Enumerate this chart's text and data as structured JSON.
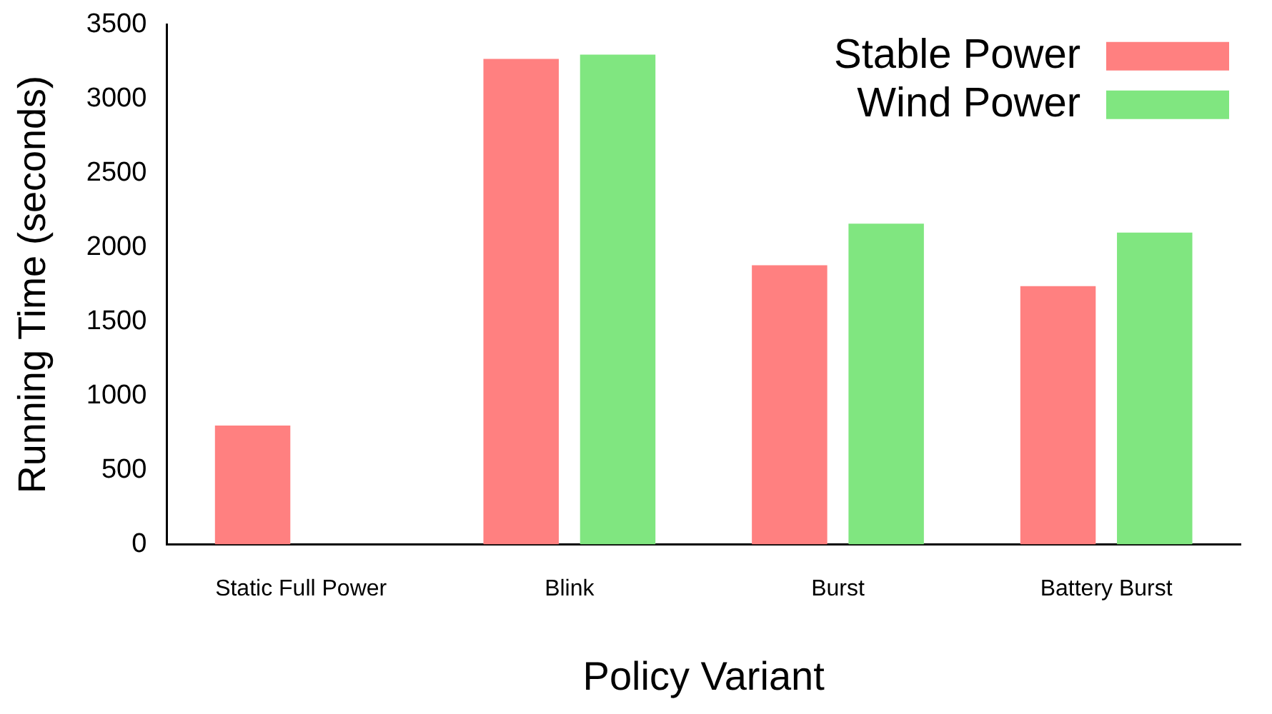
{
  "chart_data": {
    "type": "bar",
    "xlabel": "Policy Variant",
    "ylabel": "Running Time (seconds)",
    "categories": [
      "Static Full Power",
      "Blink",
      "Burst",
      "Battery Burst"
    ],
    "series": [
      {
        "name": "Stable Power",
        "color": "#ff8080",
        "values": [
          800,
          3270,
          1880,
          1740
        ]
      },
      {
        "name": "Wind Power",
        "color": "#80e680",
        "values": [
          null,
          3300,
          2160,
          2100
        ]
      }
    ],
    "ylim": [
      0,
      3500
    ],
    "yticks": [
      0,
      500,
      1000,
      1500,
      2000,
      2500,
      3000,
      3500
    ],
    "grid": false,
    "legend": "top right"
  }
}
